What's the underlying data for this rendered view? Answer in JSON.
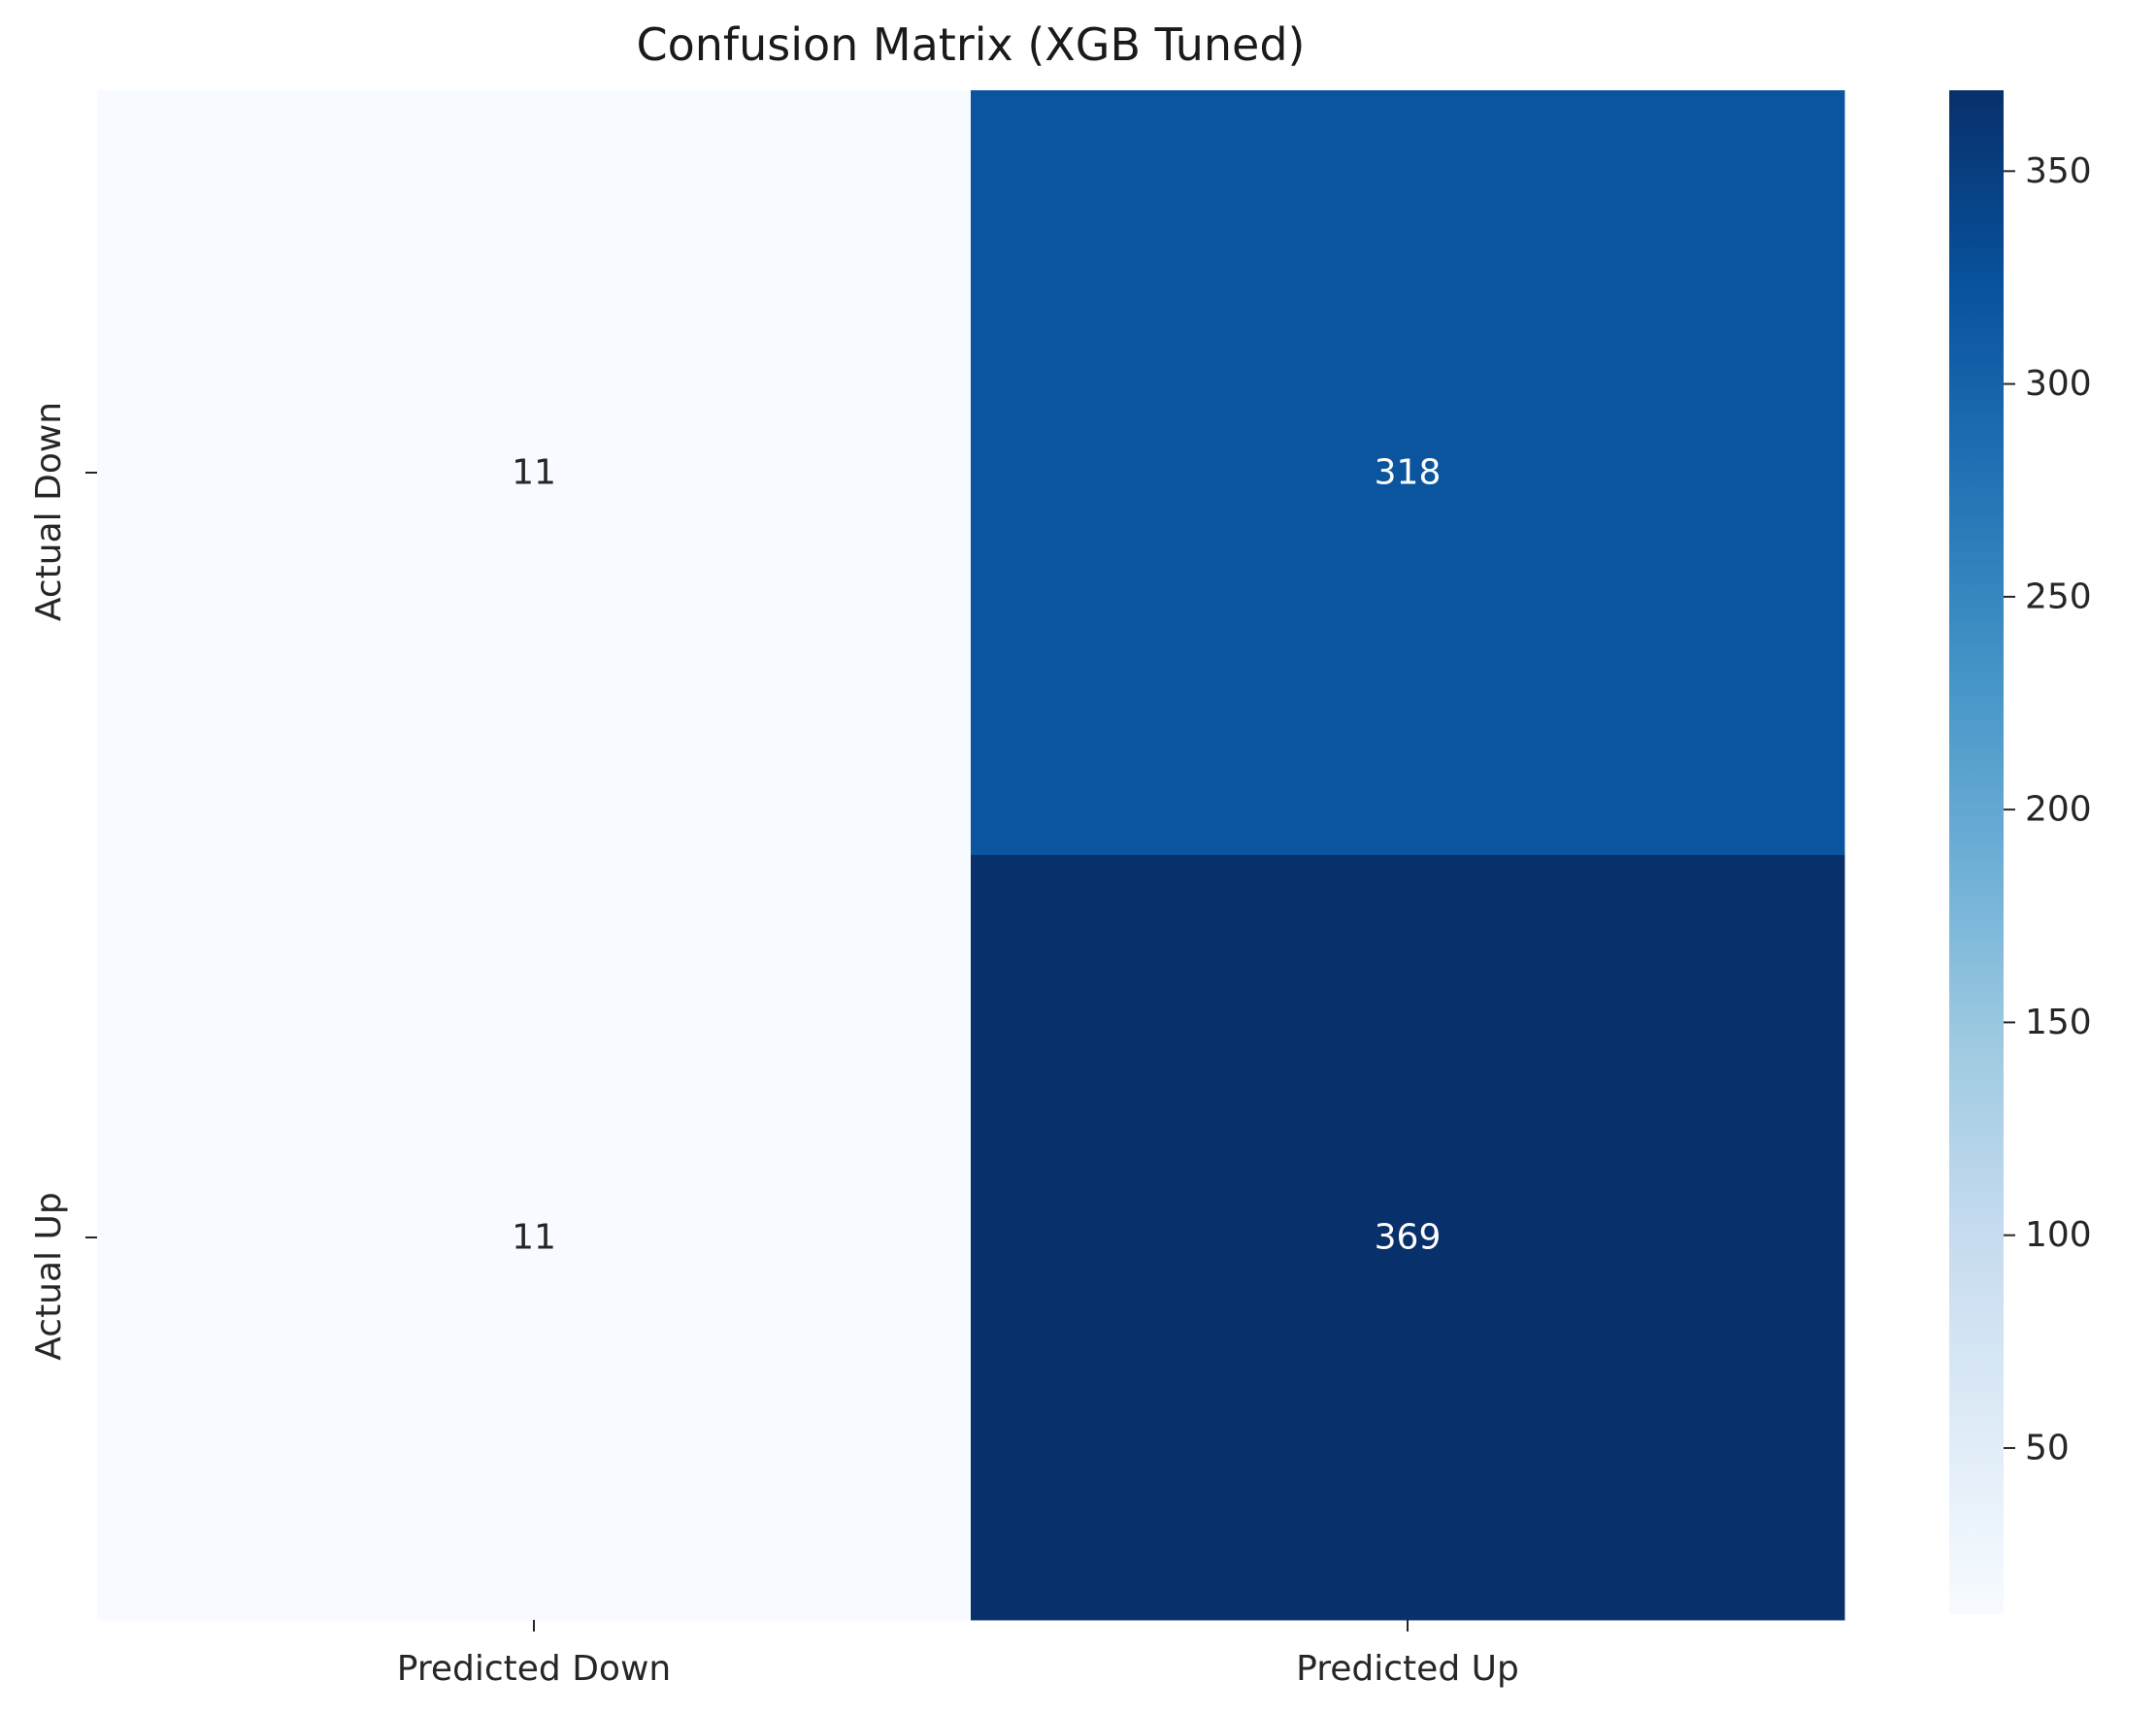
{
  "chart_data": {
    "type": "heatmap",
    "title": "Confusion Matrix (XGB Tuned)",
    "xlabel": "",
    "ylabel": "",
    "x_categories": [
      "Predicted Down",
      "Predicted Up"
    ],
    "y_categories": [
      "Actual Down",
      "Actual Up"
    ],
    "values": [
      [
        11,
        318
      ],
      [
        11,
        369
      ]
    ],
    "colormap": "Blues",
    "colorbar": {
      "min": 11,
      "max": 369,
      "ticks": [
        50,
        100,
        150,
        200,
        250,
        300,
        350
      ]
    },
    "annotations": true,
    "grid": false
  }
}
